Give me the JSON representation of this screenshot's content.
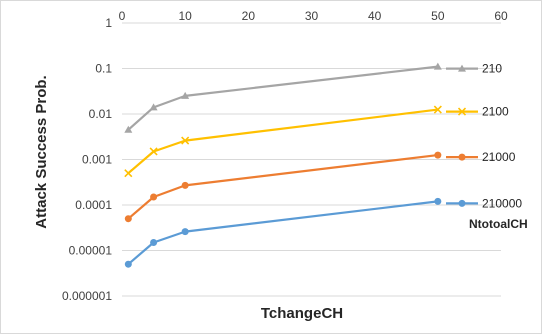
{
  "chart_data": {
    "type": "line",
    "title": "",
    "xlabel": "TchangeCH",
    "ylabel": "Attack Success Prob.",
    "y_scale": "log",
    "x_axis_position": "top",
    "xlim": [
      0,
      60
    ],
    "ylim": [
      1e-06,
      1
    ],
    "x_ticks": [
      "0",
      "10",
      "20",
      "30",
      "40",
      "50",
      "60"
    ],
    "y_ticks": [
      "1",
      "0.1",
      "0.01",
      "0.001",
      "0.0001",
      "0.00001",
      "0.000001"
    ],
    "grid": true,
    "legend_title": "NtotoalCH",
    "legend_position": "right",
    "x": [
      1,
      5,
      10,
      50
    ],
    "series": [
      {
        "name": "210",
        "color": "#a5a5a5",
        "marker": "triangle",
        "values": [
          0.0045,
          0.014,
          0.025,
          0.11
        ]
      },
      {
        "name": "2100",
        "color": "#ffc000",
        "marker": "x",
        "values": [
          0.0005,
          0.0015,
          0.0026,
          0.0125
        ]
      },
      {
        "name": "21000",
        "color": "#ed7d31",
        "marker": "circle",
        "values": [
          5e-05,
          0.00015,
          0.00027,
          0.00125
        ]
      },
      {
        "name": "210000",
        "color": "#5b9bd5",
        "marker": "circle",
        "values": [
          5e-06,
          1.5e-05,
          2.6e-05,
          0.00012
        ]
      }
    ]
  }
}
